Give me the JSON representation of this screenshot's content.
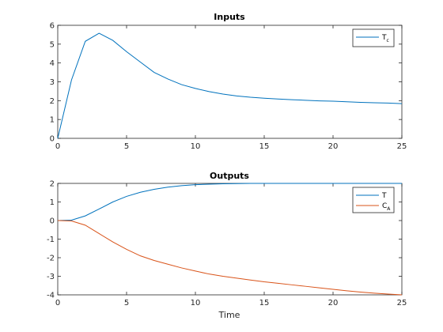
{
  "colors": {
    "series_blue": "#0072BD",
    "series_orange": "#D95319",
    "axis": "#262626",
    "background": "#ffffff"
  },
  "chart_data": [
    {
      "type": "line",
      "title": "Inputs",
      "xlabel": "",
      "ylabel": "",
      "xlim": [
        0,
        25
      ],
      "ylim": [
        0,
        6
      ],
      "xticks": [
        "0",
        "5",
        "10",
        "15",
        "20",
        "25"
      ],
      "yticks": [
        "0",
        "1",
        "2",
        "3",
        "4",
        "5",
        "6"
      ],
      "grid": false,
      "legend_position": "top-right",
      "series": [
        {
          "name": "T",
          "name_sub": "c",
          "color": "#0072BD",
          "x": [
            0,
            1,
            2,
            3,
            4,
            5,
            6,
            7,
            8,
            9,
            10,
            11,
            12,
            13,
            14,
            15,
            16,
            17,
            18,
            19,
            20,
            21,
            22,
            23,
            24,
            25
          ],
          "y": [
            0,
            3.1,
            5.15,
            5.58,
            5.2,
            4.6,
            4.05,
            3.5,
            3.15,
            2.85,
            2.65,
            2.48,
            2.35,
            2.25,
            2.18,
            2.13,
            2.09,
            2.05,
            2.02,
            1.99,
            1.97,
            1.94,
            1.91,
            1.89,
            1.87,
            1.84
          ]
        }
      ]
    },
    {
      "type": "line",
      "title": "Outputs",
      "xlabel": "Time",
      "ylabel": "",
      "xlim": [
        0,
        25
      ],
      "ylim": [
        -4,
        2
      ],
      "xticks": [
        "0",
        "5",
        "10",
        "15",
        "20",
        "25"
      ],
      "yticks": [
        "-4",
        "-3",
        "-2",
        "-1",
        "0",
        "1",
        "2"
      ],
      "grid": false,
      "legend_position": "top-right",
      "series": [
        {
          "name": "T",
          "name_sub": "",
          "color": "#0072BD",
          "x": [
            0,
            1,
            2,
            3,
            4,
            5,
            6,
            7,
            8,
            9,
            10,
            11,
            12,
            13,
            14,
            15,
            16,
            17,
            18,
            19,
            20,
            21,
            22,
            23,
            24,
            25
          ],
          "y": [
            0,
            0.02,
            0.25,
            0.62,
            1.0,
            1.3,
            1.52,
            1.68,
            1.8,
            1.88,
            1.93,
            1.96,
            1.98,
            1.99,
            2.0,
            2.0,
            2.0,
            2.0,
            2.0,
            2.0,
            2.0,
            2.0,
            2.0,
            2.0,
            2.0,
            2.0
          ]
        },
        {
          "name": "C",
          "name_sub": "A",
          "color": "#D95319",
          "x": [
            0,
            1,
            2,
            3,
            4,
            5,
            6,
            7,
            8,
            9,
            10,
            11,
            12,
            13,
            14,
            15,
            16,
            17,
            18,
            19,
            20,
            21,
            22,
            23,
            24,
            25
          ],
          "y": [
            0,
            -0.02,
            -0.25,
            -0.7,
            -1.15,
            -1.55,
            -1.9,
            -2.15,
            -2.35,
            -2.55,
            -2.72,
            -2.88,
            -3.0,
            -3.1,
            -3.2,
            -3.3,
            -3.38,
            -3.46,
            -3.54,
            -3.62,
            -3.7,
            -3.78,
            -3.85,
            -3.91,
            -3.96,
            -4.0
          ]
        }
      ]
    }
  ]
}
